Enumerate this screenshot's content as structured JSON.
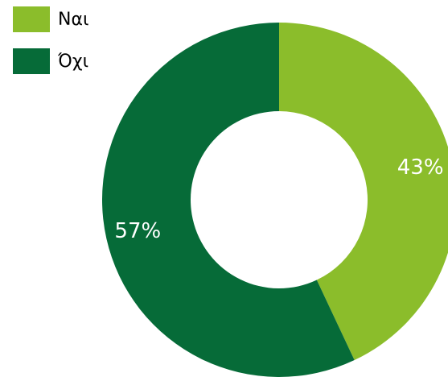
{
  "chart_data": {
    "type": "pie",
    "categories": [
      "Ναι",
      "Όχι"
    ],
    "values": [
      43,
      57
    ],
    "value_labels": [
      "43%",
      "57%"
    ],
    "colors": [
      "#8bbd2b",
      "#066b38"
    ],
    "legend": "top-left"
  }
}
